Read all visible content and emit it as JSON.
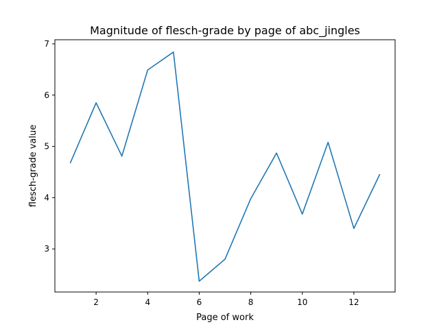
{
  "chart_data": {
    "type": "line",
    "title": "Magnitude of flesch-grade by page of abc_jingles",
    "xlabel": "Page of work",
    "ylabel": "flesch-grade value",
    "xlim": [
      0.4,
      13.6
    ],
    "ylim": [
      2.16,
      7.08
    ],
    "x_ticks": [
      2,
      4,
      6,
      8,
      10,
      12
    ],
    "y_ticks": [
      3,
      4,
      5,
      6,
      7
    ],
    "grid": false,
    "color": "#1f77b4",
    "series": [
      {
        "x": [
          1,
          2,
          3,
          4,
          5,
          6,
          7,
          8,
          9,
          10,
          11,
          12,
          13
        ],
        "values": [
          4.68,
          5.85,
          4.81,
          6.49,
          6.84,
          2.37,
          2.8,
          3.98,
          4.87,
          3.68,
          5.08,
          3.4,
          4.45
        ]
      }
    ]
  }
}
